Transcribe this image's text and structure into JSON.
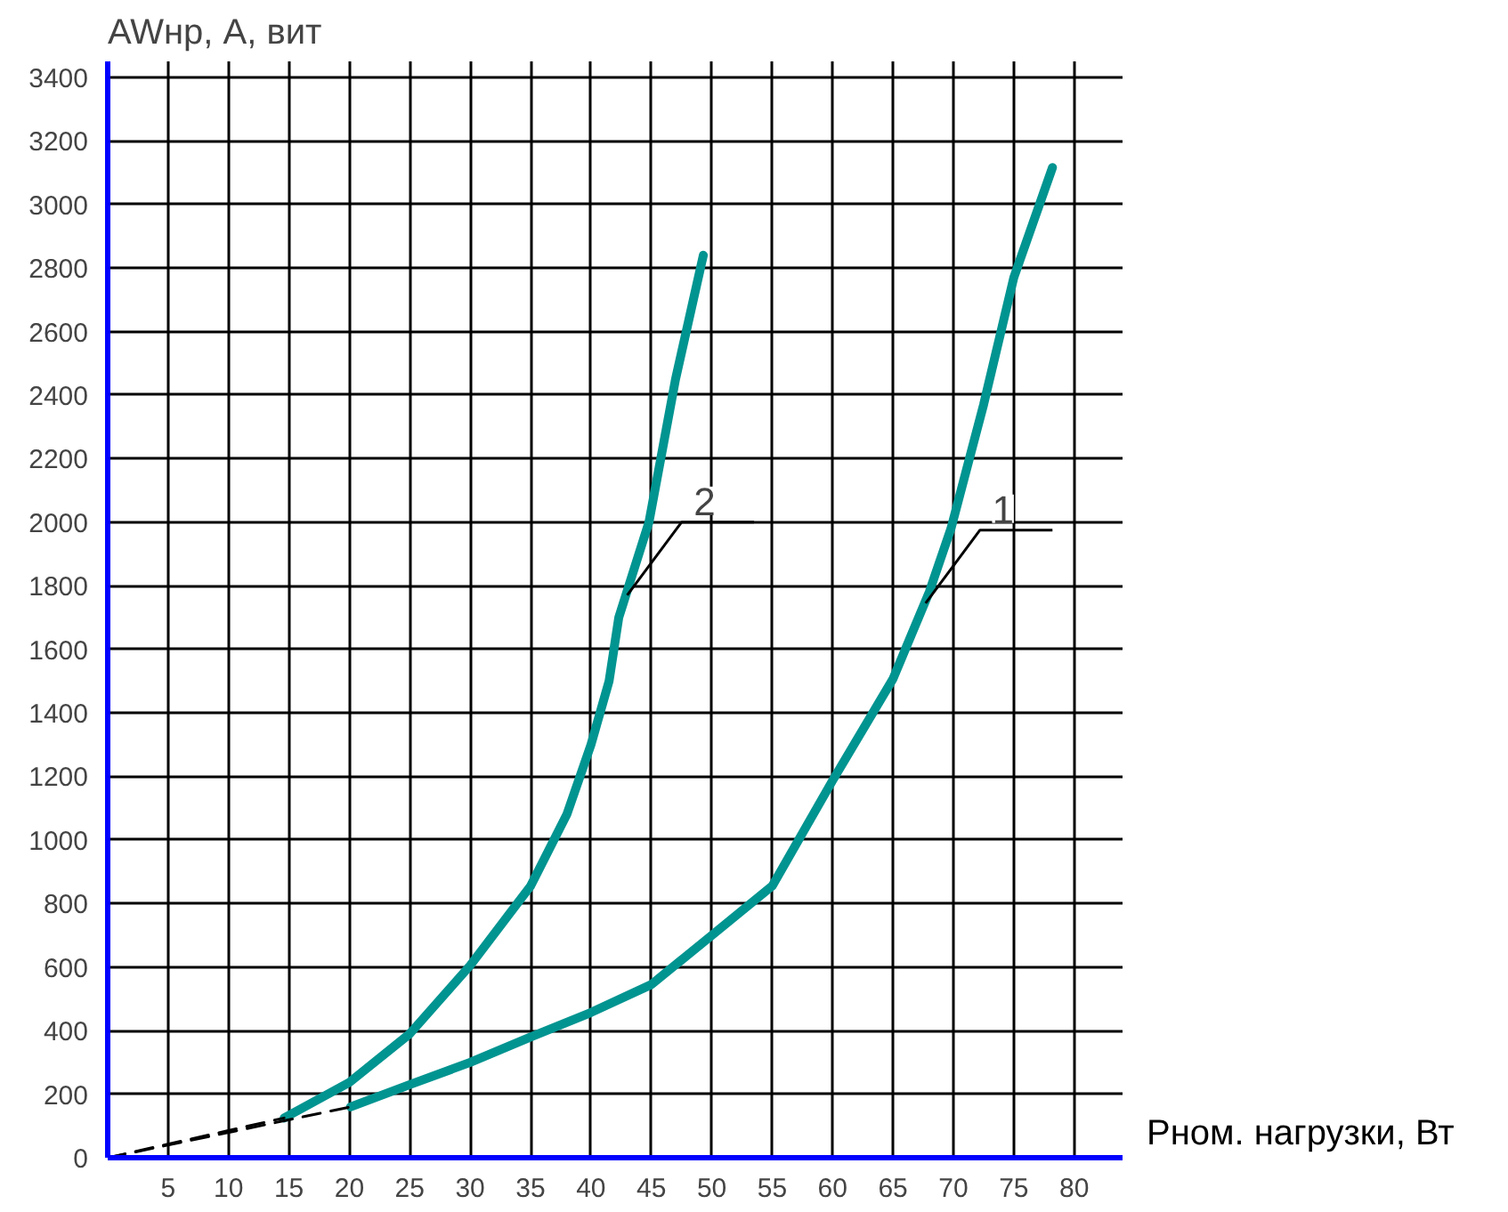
{
  "chart_data": {
    "type": "line",
    "xlabel": "Pном. нагрузки, Вт",
    "ylabel": "AWнр, А, вит",
    "xlim": [
      0,
      84
    ],
    "ylim": [
      0,
      3450
    ],
    "xticks": [
      5,
      10,
      15,
      20,
      25,
      30,
      35,
      40,
      45,
      50,
      55,
      60,
      65,
      70,
      75,
      80
    ],
    "yticks": [
      0,
      200,
      400,
      600,
      800,
      1000,
      1200,
      1400,
      1600,
      1800,
      2000,
      2200,
      2400,
      2600,
      2800,
      3000,
      3200,
      3400
    ],
    "grid": true,
    "line_style": "solid",
    "series": [
      {
        "color": "#009490",
        "x": [
          14.6,
          20,
          25,
          30,
          35,
          38,
          40,
          41.5,
          42.3,
          44.8,
          47,
          49.3
        ],
        "values": [
          125,
          237,
          390,
          605,
          855,
          1080,
          1300,
          1500,
          1700,
          2000,
          2450,
          2840
        ]
      },
      {
        "color": "#009490",
        "x": [
          20.1,
          25,
          30,
          35,
          40,
          45,
          50,
          55,
          60,
          65,
          68,
          69.8,
          72.5,
          75,
          78.2
        ],
        "values": [
          160,
          230,
          300,
          380,
          457,
          545,
          700,
          855,
          1187,
          1507,
          1780,
          1980,
          2370,
          2770,
          3116
        ]
      },
      {
        "color": "#000000",
        "line_style": "dashed",
        "x": [
          0,
          14.6
        ],
        "values": [
          0,
          125
        ]
      },
      {
        "color": "#000000",
        "line_style": "dashed",
        "x": [
          0,
          20.1
        ],
        "values": [
          0,
          160
        ]
      }
    ],
    "annotations": [
      {
        "text": "2",
        "x": 43,
        "y": 1770
      },
      {
        "text": "1",
        "x": 67.7,
        "y": 1745
      }
    ]
  }
}
